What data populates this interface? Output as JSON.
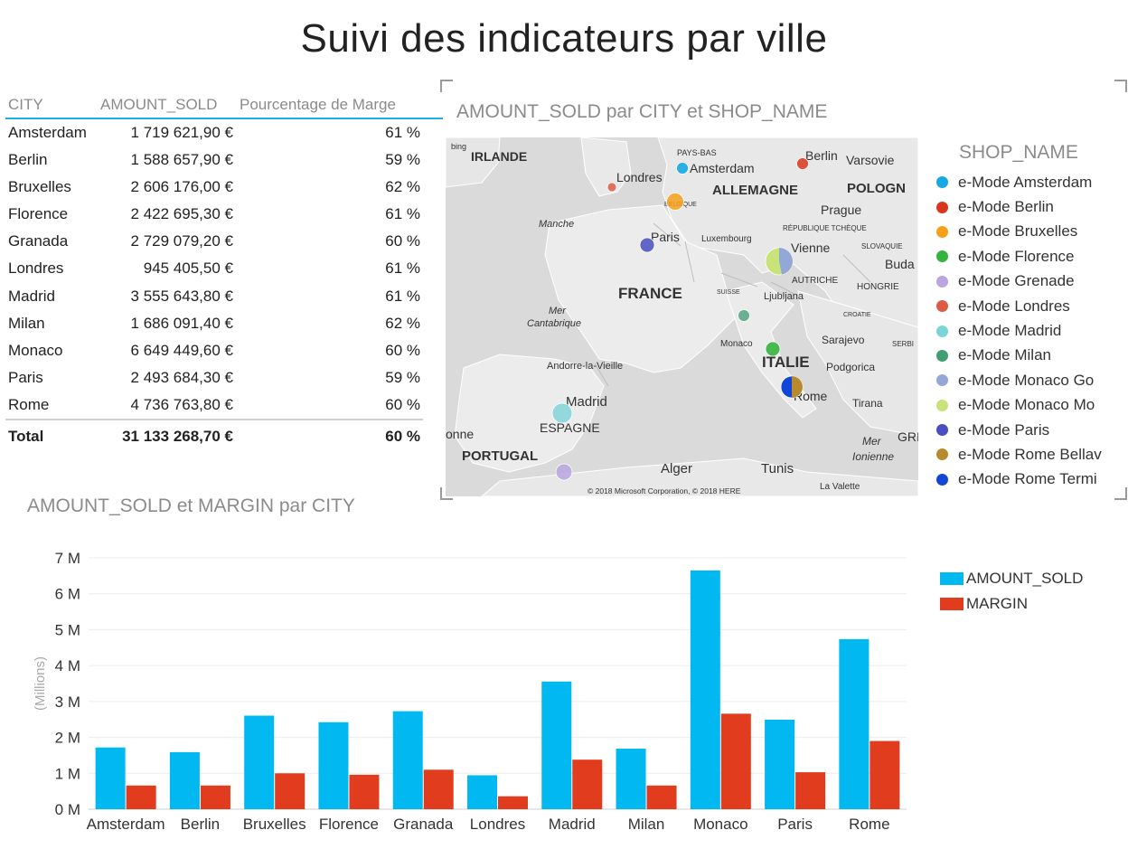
{
  "title": "Suivi des indicateurs par ville",
  "table": {
    "headers": [
      "CITY",
      "AMOUNT_SOLD",
      "Pourcentage de Marge"
    ],
    "rows": [
      {
        "city": "Amsterdam",
        "amount": "1 719 621,90 €",
        "margin_pct": "61 %"
      },
      {
        "city": "Berlin",
        "amount": "1 588 657,90 €",
        "margin_pct": "59 %"
      },
      {
        "city": "Bruxelles",
        "amount": "2 606 176,00 €",
        "margin_pct": "62 %"
      },
      {
        "city": "Florence",
        "amount": "2 422 695,30 €",
        "margin_pct": "61 %"
      },
      {
        "city": "Granada",
        "amount": "2 729 079,20 €",
        "margin_pct": "60 %"
      },
      {
        "city": "Londres",
        "amount": "945 405,50 €",
        "margin_pct": "61 %"
      },
      {
        "city": "Madrid",
        "amount": "3 555 643,80 €",
        "margin_pct": "61 %"
      },
      {
        "city": "Milan",
        "amount": "1 686 091,40 €",
        "margin_pct": "62 %"
      },
      {
        "city": "Monaco",
        "amount": "6 649 449,60 €",
        "margin_pct": "60 %"
      },
      {
        "city": "Paris",
        "amount": "2 493 684,30 €",
        "margin_pct": "59 %"
      },
      {
        "city": "Rome",
        "amount": "4 736 763,80 €",
        "margin_pct": "60 %"
      }
    ],
    "total": {
      "label": "Total",
      "amount": "31 133 268,70 €",
      "margin_pct": "60 %"
    }
  },
  "map": {
    "title": "AMOUNT_SOLD par CITY et SHOP_NAME",
    "bing_label": "bing",
    "copyright": "© 2018 Microsoft Corporation, © 2018 HERE",
    "labels": [
      "IRLANDE",
      "PAYS-BAS",
      "Amsterdam",
      "Berlin",
      "Varsovie",
      "Londres",
      "ALLEMAGNE",
      "POLOGN",
      "BELGIQUE",
      "Prague",
      "Manche",
      "RÉPUBLIQUE TCHÈQUE",
      "Paris",
      "Luxembourg",
      "Vienne",
      "SLOVAQUIE",
      "Buda",
      "AUTRICHE",
      "HONGRIE",
      "FRANCE",
      "SUISSE",
      "Ljubljana",
      "Mer",
      "Cantabrique",
      "CROATIE",
      "Monaco",
      "Sarajevo",
      "SERBI",
      "Andorre-la-Vieille",
      "ITALIE",
      "Podgorica",
      "Madrid",
      "Rome",
      "Tirana",
      "ESPAGNE",
      "onne",
      "PORTUGAL",
      "Mer",
      "Ionienne",
      "GRI",
      "Alger",
      "Tunis",
      "La Valette"
    ],
    "legend_title": "SHOP_NAME",
    "legend": [
      {
        "label": "e-Mode Amsterdam",
        "color": "#16a8e3"
      },
      {
        "label": "e-Mode Berlin",
        "color": "#d8371d"
      },
      {
        "label": "e-Mode Bruxelles",
        "color": "#f6a01a"
      },
      {
        "label": "e-Mode Florence",
        "color": "#35b43d"
      },
      {
        "label": "e-Mode Grenade",
        "color": "#b9a6e0"
      },
      {
        "label": "e-Mode Londres",
        "color": "#dc5a47"
      },
      {
        "label": "e-Mode Madrid",
        "color": "#7cd3d8"
      },
      {
        "label": "e-Mode Milan",
        "color": "#3f9e73"
      },
      {
        "label": "e-Mode Monaco Go",
        "color": "#93a8d6"
      },
      {
        "label": "e-Mode Monaco Mo",
        "color": "#c7e37a"
      },
      {
        "label": "e-Mode Paris",
        "color": "#4a4fbf"
      },
      {
        "label": "e-Mode Rome Bellav",
        "color": "#b88a2e"
      },
      {
        "label": "e-Mode Rome Termi",
        "color": "#1146d6"
      }
    ]
  },
  "bar_chart": {
    "title": "AMOUNT_SOLD et MARGIN par CITY",
    "ylabel": "(Millions)",
    "legend": [
      {
        "label": "AMOUNT_SOLD",
        "color": "#01b8f0"
      },
      {
        "label": "MARGIN",
        "color": "#e03c1d"
      }
    ]
  },
  "chart_data": {
    "type": "bar",
    "title": "AMOUNT_SOLD et MARGIN par CITY",
    "xlabel": "",
    "ylabel": "(Millions)",
    "categories": [
      "Amsterdam",
      "Berlin",
      "Bruxelles",
      "Florence",
      "Granada",
      "Londres",
      "Madrid",
      "Milan",
      "Monaco",
      "Paris",
      "Rome"
    ],
    "series": [
      {
        "name": "AMOUNT_SOLD",
        "color": "#01b8f0",
        "values": [
          1719621.9,
          1588657.9,
          2606176.0,
          2422695.3,
          2729079.2,
          945405.5,
          3555643.8,
          1686091.4,
          6649449.6,
          2493684.3,
          4736763.8
        ]
      },
      {
        "name": "MARGIN",
        "color": "#e03c1d",
        "values": [
          660000,
          660000,
          1000000,
          960000,
          1100000,
          360000,
          1380000,
          660000,
          2660000,
          1030000,
          1900000
        ]
      }
    ],
    "yticks": [
      "0 M",
      "1 M",
      "2 M",
      "3 M",
      "4 M",
      "5 M",
      "6 M",
      "7 M"
    ],
    "ylim": [
      0,
      7000000
    ],
    "grid": true,
    "legend_position": "top-right"
  }
}
